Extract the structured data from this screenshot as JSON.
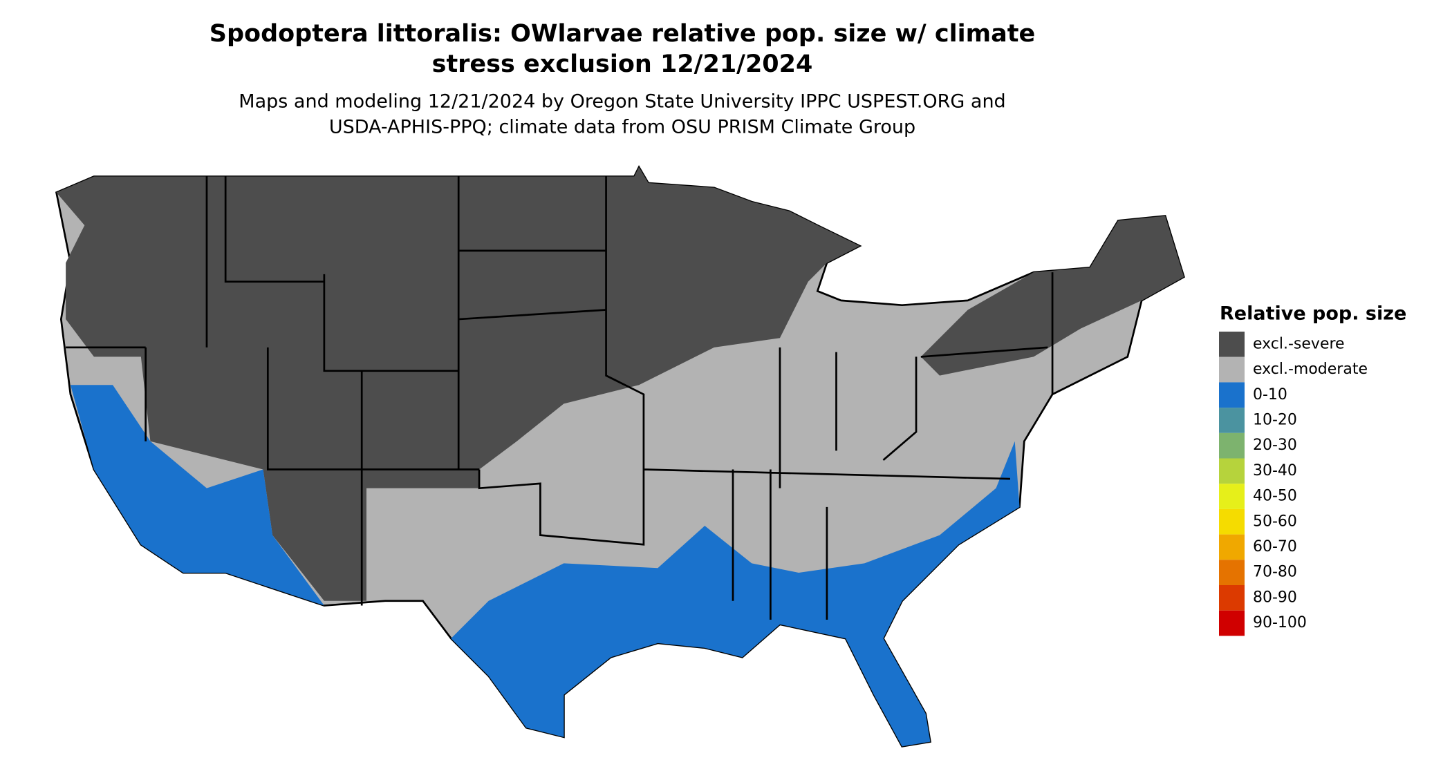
{
  "title_lines": [
    "Spodoptera littoralis: OWlarvae relative pop. size w/ climate",
    "stress exclusion 12/21/2024"
  ],
  "subtitle_lines": [
    "Maps and modeling 12/21/2024 by Oregon State University IPPC USPEST.ORG and",
    "USDA-APHIS-PPQ; climate data from OSU PRISM Climate Group"
  ],
  "legend": {
    "title": "Relative pop. size",
    "items": [
      {
        "label": "excl.-severe",
        "color": "#4d4d4d"
      },
      {
        "label": "excl.-moderate",
        "color": "#b3b3b3"
      },
      {
        "label": "0-10",
        "color": "#1a72cc"
      },
      {
        "label": "10-20",
        "color": "#4b93a0"
      },
      {
        "label": "20-30",
        "color": "#7db36e"
      },
      {
        "label": "30-40",
        "color": "#b6d33c"
      },
      {
        "label": "40-50",
        "color": "#e6ef1a"
      },
      {
        "label": "50-60",
        "color": "#f5dc00"
      },
      {
        "label": "60-70",
        "color": "#f0a800"
      },
      {
        "label": "70-80",
        "color": "#e57300"
      },
      {
        "label": "80-90",
        "color": "#dc3a00"
      },
      {
        "label": "90-100",
        "color": "#d00000"
      }
    ]
  }
}
